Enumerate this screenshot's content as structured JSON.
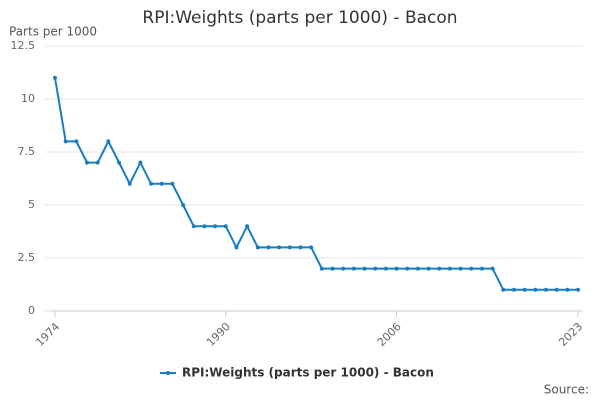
{
  "chart_data": {
    "type": "line",
    "title": "RPI:Weights (parts per 1000) - Bacon",
    "y_label": "Parts per 1000",
    "source": "Source:",
    "x": [
      1974,
      1975,
      1976,
      1977,
      1978,
      1979,
      1980,
      1981,
      1982,
      1983,
      1984,
      1985,
      1986,
      1987,
      1988,
      1989,
      1990,
      1991,
      1992,
      1993,
      1994,
      1995,
      1996,
      1997,
      1998,
      1999,
      2000,
      2001,
      2002,
      2003,
      2004,
      2005,
      2006,
      2007,
      2008,
      2009,
      2010,
      2011,
      2012,
      2013,
      2014,
      2015,
      2016,
      2017,
      2018,
      2019,
      2020,
      2021,
      2022,
      2023
    ],
    "series": [
      {
        "name": "RPI:Weights (parts per 1000) - Bacon",
        "color": "#1a7dc0",
        "values": [
          11,
          8,
          8,
          7,
          7,
          8,
          7,
          6,
          7,
          6,
          6,
          6,
          5,
          4,
          4,
          4,
          4,
          3,
          4,
          3,
          3,
          3,
          3,
          3,
          3,
          2,
          2,
          2,
          2,
          2,
          2,
          2,
          2,
          2,
          2,
          2,
          2,
          2,
          2,
          2,
          2,
          2,
          1,
          1,
          1,
          1,
          1,
          1,
          1,
          1
        ]
      }
    ],
    "xlim": [
      1974,
      2023
    ],
    "xticks": [
      1974,
      1990,
      2006,
      2023
    ],
    "ylim": [
      0,
      12.5
    ],
    "yticks": [
      0,
      2.5,
      5,
      7.5,
      10,
      12.5
    ],
    "grid": true
  }
}
